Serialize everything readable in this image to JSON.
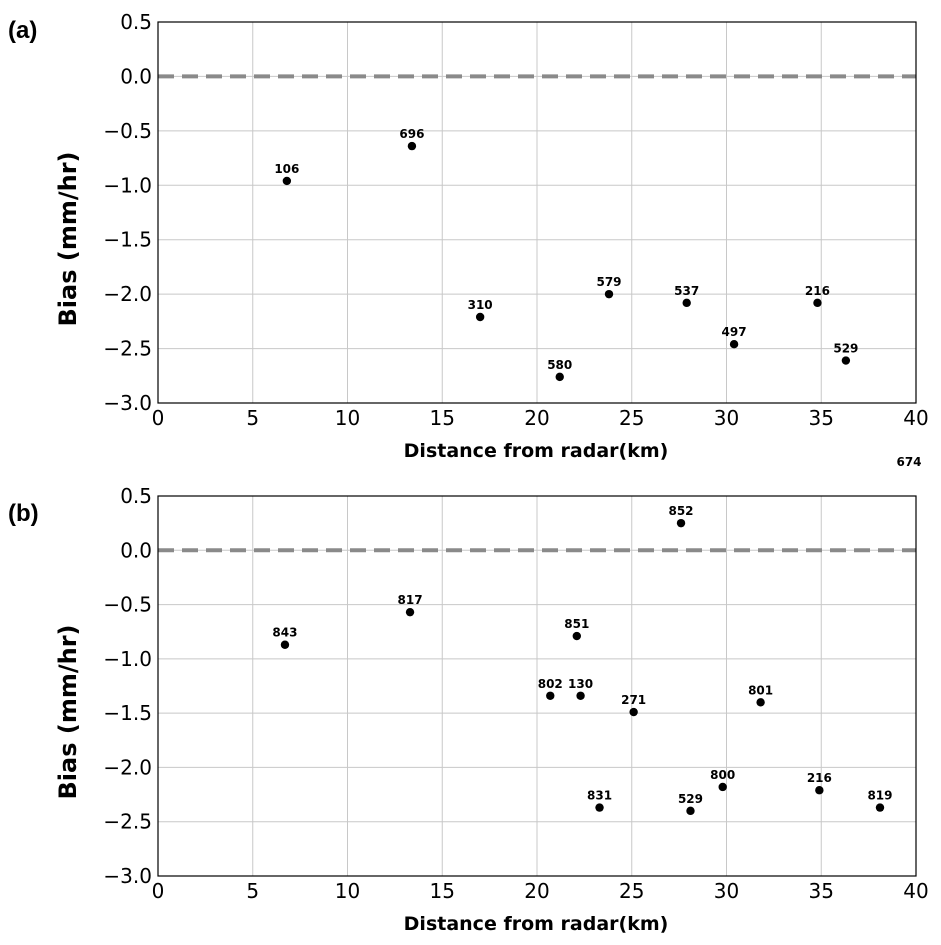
{
  "chart_data": [
    {
      "type": "scatter",
      "panel_label": "(a)",
      "xlabel": "Distance from radar(km)",
      "ylabel": "Bias (mm/hr)",
      "xlim": [
        0,
        40
      ],
      "ylim": [
        -3.0,
        0.5
      ],
      "x_ticks": [
        0,
        5,
        10,
        15,
        20,
        25,
        30,
        35,
        40
      ],
      "x_tick_labels": [
        "0",
        "5",
        "10",
        "15",
        "20",
        "25",
        "30",
        "35",
        "40"
      ],
      "y_ticks": [
        0.5,
        0.0,
        -0.5,
        -1.0,
        -1.5,
        -2.0,
        -2.5,
        -3.0
      ],
      "y_tick_labels": [
        "0.5",
        "0.0",
        "−0.5",
        "−1.0",
        "−1.5",
        "−2.0",
        "−2.5",
        "−3.0"
      ],
      "grid": true,
      "reference_line": {
        "y": 0.0,
        "style": "dashed",
        "color": "#8a8a8a"
      },
      "points": [
        {
          "x": 6.8,
          "y": -0.96,
          "label": "106"
        },
        {
          "x": 13.4,
          "y": -0.64,
          "label": "696"
        },
        {
          "x": 17.0,
          "y": -2.21,
          "label": "310"
        },
        {
          "x": 21.2,
          "y": -2.76,
          "label": "580"
        },
        {
          "x": 23.8,
          "y": -2.0,
          "label": "579"
        },
        {
          "x": 27.9,
          "y": -2.08,
          "label": "537"
        },
        {
          "x": 30.4,
          "y": -2.46,
          "label": "497"
        },
        {
          "x": 34.8,
          "y": -2.08,
          "label": "216"
        },
        {
          "x": 36.3,
          "y": -2.61,
          "label": "529"
        }
      ],
      "annotations": [
        {
          "text": "674"
        }
      ]
    },
    {
      "type": "scatter",
      "panel_label": "(b)",
      "xlabel": "Distance from radar(km)",
      "ylabel": "Bias (mm/hr)",
      "xlim": [
        0,
        40
      ],
      "ylim": [
        -3.0,
        0.5
      ],
      "x_ticks": [
        0,
        5,
        10,
        15,
        20,
        25,
        30,
        35,
        40
      ],
      "x_tick_labels": [
        "0",
        "5",
        "10",
        "15",
        "20",
        "25",
        "30",
        "35",
        "40"
      ],
      "y_ticks": [
        0.5,
        0.0,
        -0.5,
        -1.0,
        -1.5,
        -2.0,
        -2.5,
        -3.0
      ],
      "y_tick_labels": [
        "0.5",
        "0.0",
        "−0.5",
        "−1.0",
        "−1.5",
        "−2.0",
        "−2.5",
        "−3.0"
      ],
      "grid": true,
      "reference_line": {
        "y": 0.0,
        "style": "dashed",
        "color": "#8a8a8a"
      },
      "points": [
        {
          "x": 6.7,
          "y": -0.87,
          "label": "843"
        },
        {
          "x": 13.3,
          "y": -0.57,
          "label": "817"
        },
        {
          "x": 20.7,
          "y": -1.34,
          "label": "802"
        },
        {
          "x": 22.1,
          "y": -0.79,
          "label": "851"
        },
        {
          "x": 22.3,
          "y": -1.34,
          "label": "130"
        },
        {
          "x": 23.3,
          "y": -2.37,
          "label": "831"
        },
        {
          "x": 25.1,
          "y": -1.49,
          "label": "271"
        },
        {
          "x": 27.6,
          "y": 0.25,
          "label": "852"
        },
        {
          "x": 28.1,
          "y": -2.4,
          "label": "529"
        },
        {
          "x": 29.8,
          "y": -2.18,
          "label": "800"
        },
        {
          "x": 31.8,
          "y": -1.4,
          "label": "801"
        },
        {
          "x": 34.9,
          "y": -2.21,
          "label": "216"
        },
        {
          "x": 38.1,
          "y": -2.37,
          "label": "819"
        }
      ]
    }
  ]
}
